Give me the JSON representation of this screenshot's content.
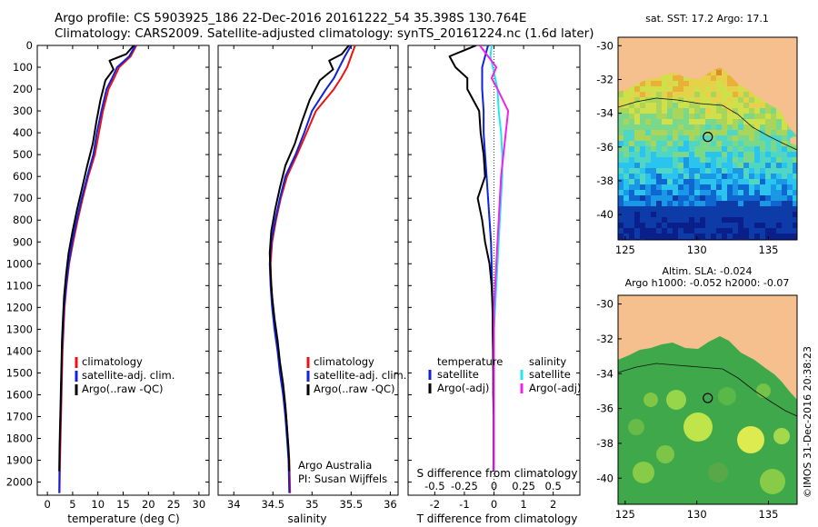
{
  "header": {
    "line1": "Argo profile: CS 5903925_186 22-Dec-2016 20161222_54 35.398S 130.764E",
    "line2": "Climatology: CARS2009. Satellite-adjusted climatology: synTS_20161224.nc (1.6d later)"
  },
  "colors": {
    "climatology": "#ee1111",
    "satellite": "#1122dd",
    "argo": "#000000",
    "sal_satellite": "#22e6ee",
    "sal_argo": "#ee22ee",
    "land": "#f5c08e"
  },
  "depth_axis": {
    "ticks": [
      0,
      100,
      200,
      300,
      400,
      500,
      600,
      700,
      800,
      900,
      1000,
      1100,
      1200,
      1300,
      1400,
      1500,
      1600,
      1700,
      1800,
      1900,
      2000
    ],
    "range": [
      0,
      2060
    ]
  },
  "temperature_panel": {
    "xlabel": "temperature (deg C)",
    "ticks": [
      0,
      5,
      10,
      15,
      20,
      25,
      30
    ],
    "xlim": [
      -2,
      32
    ],
    "legend": [
      "climatology",
      "satellite-adj. clim.",
      "Argo(..raw -QC)"
    ]
  },
  "salinity_panel": {
    "xlabel": "salinity",
    "ticks": [
      "34",
      "34.5",
      "35",
      "35.5",
      "36"
    ],
    "xlim": [
      33.8,
      36.1
    ],
    "legend": [
      "climatology",
      "satellite-adj. clim.",
      "Argo(..raw -QC)"
    ],
    "note1": "Argo Australia",
    "note2": "PI: Susan Wijffels"
  },
  "difference_panel": {
    "xlabel_bottom": "T difference from climatology",
    "xlabel_top": "S difference from climatology",
    "t_ticks": [
      "-2",
      "-1",
      "0",
      "1",
      "2"
    ],
    "s_ticks": [
      "-0.5",
      "-0.25",
      "0",
      "0.25",
      "0.5"
    ],
    "legend_temp_title": "temperature",
    "legend_sal_title": "salinity",
    "legend_temp": [
      "satellite",
      "Argo(-adj)"
    ],
    "legend_sal": [
      "satellite",
      "Argo(-adj)"
    ]
  },
  "map_sst": {
    "title": "sat. SST: 17.2  Argo: 17.1",
    "lat_ticks": [
      "-30",
      "-32",
      "-34",
      "-36",
      "-38",
      "-40"
    ],
    "lon_ticks": [
      "125",
      "130",
      "135"
    ],
    "float_lon": 130.764,
    "float_lat": -35.398
  },
  "map_sla": {
    "title1": "Altim. SLA: -0.024",
    "title2": "Argo h1000: -0.052  h2000: -0.07",
    "lat_ticks": [
      "-30",
      "-32",
      "-34",
      "-36",
      "-38",
      "-40"
    ],
    "lon_ticks": [
      "125",
      "130",
      "135"
    ],
    "float_lon": 130.764,
    "float_lat": -35.398
  },
  "credit": "©IMOS 31-Dec-2016 20:38:23",
  "chart_data": [
    {
      "type": "line",
      "title": "",
      "xlabel": "temperature (deg C)",
      "ylabel": "",
      "xlim": [
        -2,
        32
      ],
      "ylim": [
        2060,
        0
      ],
      "series": [
        {
          "name": "climatology",
          "x": [
            17.6,
            16.5,
            14.2,
            13.2,
            12.1,
            11.0,
            10.2,
            9.4,
            8.1,
            7.0,
            6.0,
            5.1,
            4.3,
            3.8,
            3.4,
            3.2,
            3.0,
            2.9,
            2.8,
            2.7,
            2.6,
            2.5,
            2.4
          ],
          "y": [
            0,
            50,
            100,
            150,
            200,
            300,
            400,
            500,
            600,
            700,
            800,
            900,
            1000,
            1100,
            1200,
            1300,
            1400,
            1500,
            1600,
            1700,
            1800,
            1900,
            2050
          ]
        },
        {
          "name": "satellite-adj. clim.",
          "x": [
            17.4,
            16.2,
            13.8,
            12.8,
            11.7,
            10.7,
            9.8,
            9.1,
            7.9,
            6.8,
            5.8,
            4.9,
            4.2,
            3.7,
            3.3,
            3.1,
            2.9,
            2.8,
            2.7,
            2.6,
            2.5,
            2.4,
            2.35
          ],
          "y": [
            0,
            50,
            100,
            150,
            200,
            300,
            400,
            500,
            600,
            700,
            800,
            900,
            1000,
            1100,
            1200,
            1300,
            1400,
            1500,
            1600,
            1700,
            1800,
            1900,
            2050
          ]
        },
        {
          "name": "Argo(..raw -QC)",
          "x": [
            17.1,
            15.6,
            12.3,
            13.1,
            11.5,
            10.5,
            9.7,
            9.0,
            7.9,
            6.9,
            5.9,
            5.0,
            4.2,
            3.7,
            3.3,
            3.1,
            2.9,
            2.8,
            2.7,
            2.6,
            2.5,
            2.4,
            2.35
          ],
          "y": [
            0,
            40,
            70,
            110,
            160,
            250,
            350,
            450,
            550,
            650,
            750,
            850,
            950,
            1050,
            1150,
            1250,
            1350,
            1450,
            1550,
            1650,
            1750,
            1850,
            1950
          ]
        }
      ]
    },
    {
      "type": "line",
      "title": "",
      "xlabel": "salinity",
      "ylabel": "",
      "xlim": [
        33.8,
        36.1
      ],
      "ylim": [
        2060,
        0
      ],
      "series": [
        {
          "name": "climatology",
          "x": [
            35.55,
            35.5,
            35.45,
            35.37,
            35.28,
            35.05,
            34.93,
            34.81,
            34.68,
            34.6,
            34.54,
            34.49,
            34.47,
            34.48,
            34.5,
            34.53,
            34.57,
            34.6,
            34.64,
            34.67,
            34.69,
            34.71,
            34.72
          ],
          "y": [
            0,
            50,
            100,
            150,
            200,
            300,
            400,
            500,
            600,
            700,
            800,
            900,
            1000,
            1100,
            1200,
            1300,
            1400,
            1500,
            1600,
            1700,
            1800,
            1900,
            2050
          ]
        },
        {
          "name": "satellite-adj. clim.",
          "x": [
            35.5,
            35.42,
            35.35,
            35.28,
            35.18,
            35.0,
            34.9,
            34.79,
            34.66,
            34.59,
            34.53,
            34.48,
            34.46,
            34.47,
            34.49,
            34.52,
            34.56,
            34.59,
            34.63,
            34.66,
            34.68,
            34.7,
            34.71
          ],
          "y": [
            0,
            50,
            100,
            150,
            200,
            300,
            400,
            500,
            600,
            700,
            800,
            900,
            1000,
            1100,
            1200,
            1300,
            1400,
            1500,
            1600,
            1700,
            1800,
            1900,
            2050
          ]
        },
        {
          "name": "Argo(..raw -QC)",
          "x": [
            35.47,
            35.38,
            35.22,
            35.27,
            35.1,
            34.97,
            34.87,
            34.78,
            34.66,
            34.59,
            34.53,
            34.48,
            34.46,
            34.47,
            34.49,
            34.52,
            34.56,
            34.59,
            34.63,
            34.66,
            34.68,
            34.7,
            34.71
          ],
          "y": [
            0,
            40,
            70,
            110,
            160,
            250,
            350,
            450,
            550,
            650,
            750,
            850,
            950,
            1050,
            1150,
            1250,
            1350,
            1450,
            1550,
            1650,
            1750,
            1850,
            1950
          ]
        }
      ]
    },
    {
      "type": "line",
      "title": "",
      "xlabel": "T difference from climatology",
      "ylabel": "",
      "xlim": [
        -2.9,
        2.9
      ],
      "ylim": [
        2060,
        0
      ],
      "series": [
        {
          "name": "satellite (temperature)",
          "x": [
            -0.2,
            -0.3,
            -0.4,
            -0.4,
            -0.4,
            -0.35,
            -0.35,
            -0.3,
            -0.25,
            -0.2,
            -0.15,
            -0.1,
            -0.08,
            -0.06,
            -0.05,
            -0.04,
            -0.03,
            -0.02,
            -0.02,
            -0.01,
            -0.01,
            -0.01
          ],
          "y": [
            0,
            50,
            100,
            150,
            200,
            300,
            400,
            500,
            600,
            700,
            800,
            900,
            1000,
            1100,
            1200,
            1300,
            1400,
            1500,
            1600,
            1700,
            1800,
            1950
          ]
        },
        {
          "name": "Argo(-adj) (temperature)",
          "x": [
            -0.6,
            -1.5,
            -1.3,
            -0.9,
            -0.9,
            -0.5,
            -0.45,
            -0.35,
            -0.3,
            -0.55,
            -0.4,
            -0.3,
            -0.15,
            -0.08,
            -0.05,
            -0.04,
            -0.03,
            -0.02,
            -0.02,
            -0.01,
            -0.01,
            -0.01
          ],
          "y": [
            0,
            50,
            100,
            150,
            200,
            300,
            400,
            500,
            600,
            700,
            800,
            900,
            1000,
            1100,
            1200,
            1300,
            1400,
            1500,
            1600,
            1700,
            1800,
            1950
          ]
        },
        {
          "name": "satellite (salinity)",
          "x": [
            -0.02,
            -0.03,
            -0.01,
            0.01,
            0.03,
            0.04,
            0.06,
            0.07,
            0.07,
            0.06,
            0.05,
            0.04,
            0.03,
            0.02,
            0.01,
            0.0,
            0.0,
            0.0,
            0.0,
            0.0,
            0.0,
            0.0
          ],
          "y": [
            0,
            50,
            100,
            150,
            200,
            300,
            400,
            500,
            600,
            700,
            800,
            900,
            1000,
            1100,
            1200,
            1300,
            1400,
            1500,
            1600,
            1700,
            1800,
            1950
          ]
        },
        {
          "name": "Argo(-adj) (salinity)",
          "x": [
            -0.12,
            -0.05,
            0.02,
            -0.02,
            0.03,
            0.12,
            0.1,
            0.08,
            0.06,
            0.05,
            0.04,
            0.03,
            0.02,
            0.01,
            0.0,
            0.0,
            0.0,
            0.0,
            0.0,
            0.0,
            0.0,
            0.0
          ],
          "y": [
            0,
            50,
            100,
            150,
            200,
            300,
            400,
            500,
            600,
            700,
            800,
            900,
            1000,
            1100,
            1200,
            1300,
            1400,
            1500,
            1600,
            1700,
            1800,
            1950
          ]
        }
      ]
    },
    {
      "type": "heatmap",
      "title": "sat. SST: 17.2  Argo: 17.1",
      "xlim": [
        124.5,
        137
      ],
      "ylim": [
        -41.5,
        -29.5
      ]
    },
    {
      "type": "heatmap",
      "title": "Altim. SLA: -0.024",
      "xlim": [
        124.5,
        137
      ],
      "ylim": [
        -41.5,
        -29.5
      ]
    }
  ]
}
